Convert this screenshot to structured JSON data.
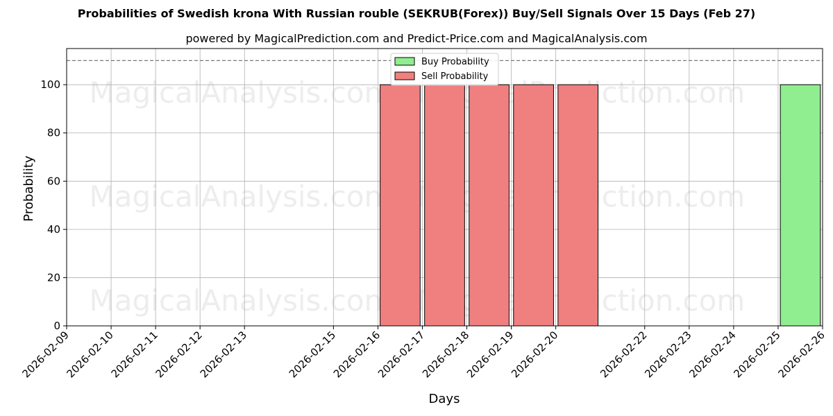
{
  "chart_data": {
    "type": "bar",
    "title": "Probabilities of Swedish krona With Russian rouble (SEKRUB(Forex)) Buy/Sell Signals Over 15 Days (Feb 27)",
    "subtitle": "powered by MagicalPrediction.com and Predict-Price.com and MagicalAnalysis.com",
    "xlabel": "Days",
    "ylabel": "Probability",
    "ylim": [
      0,
      115
    ],
    "yticks": [
      0,
      20,
      40,
      60,
      80,
      100
    ],
    "xtick_labels": [
      "2026-02-09",
      "2026-02-10",
      "2026-02-11",
      "2026-02-12",
      "2026-02-13",
      "2026-02-15",
      "2026-02-16",
      "2026-02-17",
      "2026-02-18",
      "2026-02-19",
      "2026-02-20",
      "2026-02-22",
      "2026-02-23",
      "2026-02-24",
      "2026-02-25",
      "2026-02-26"
    ],
    "grid": true,
    "legend_position": "top-center",
    "reference_line": 110,
    "series": [
      {
        "name": "Buy Probability",
        "color": "#90ee90",
        "points": [
          {
            "x": "2026-02-25",
            "value": 100
          }
        ]
      },
      {
        "name": "Sell Probability",
        "color": "#f08080",
        "points": [
          {
            "x": "2026-02-16",
            "value": 100
          },
          {
            "x": "2026-02-17",
            "value": 100
          },
          {
            "x": "2026-02-18",
            "value": 100
          },
          {
            "x": "2026-02-19",
            "value": 100
          },
          {
            "x": "2026-02-20",
            "value": 100
          }
        ]
      }
    ],
    "watermarks": [
      "MagicalAnalysis.com",
      "MagicalPrediction.com"
    ]
  }
}
